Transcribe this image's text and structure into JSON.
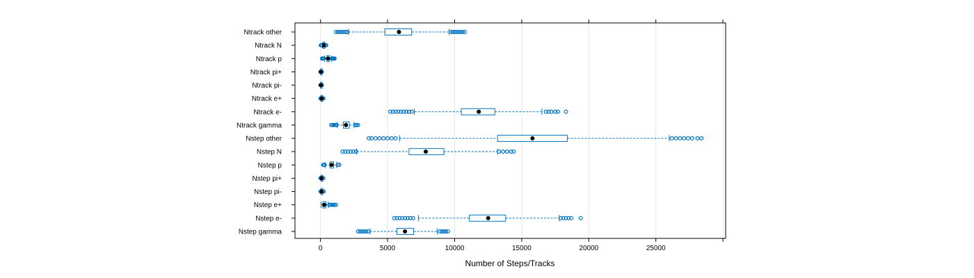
{
  "chart_data": {
    "type": "boxplot",
    "orientation": "horizontal",
    "xlabel": "Number of Steps/Tracks",
    "xlim": [
      -1900,
      30200
    ],
    "x_ticks": [
      0,
      5000,
      10000,
      15000,
      20000,
      25000
    ],
    "grid": true,
    "colors": {
      "box": "#0073C2",
      "outlier": "#0073C2",
      "grid": "#E6E6E6",
      "median": "#000000",
      "frame": "#000000"
    },
    "categories_top_to_bottom": [
      "Ntrack other",
      "Ntrack N",
      "Ntrack p",
      "Ntrack pi+",
      "Ntrack pi-",
      "Ntrack e+",
      "Ntrack e-",
      "Ntrack gamma",
      "Nstep other",
      "Nstep N",
      "Nstep p",
      "Nstep pi+",
      "Nstep pi-",
      "Nstep e+",
      "Nstep e-",
      "Nstep gamma"
    ],
    "boxes": [
      {
        "label": "Ntrack other",
        "whisker_low": 2100,
        "q1": 4800,
        "median": 5850,
        "q3": 6800,
        "whisker_high": 9600,
        "outliers": [
          1150,
          1300,
          1450,
          1600,
          1750,
          1900,
          2000,
          9700,
          9850,
          10000,
          10150,
          10300,
          10450,
          10600,
          10750
        ]
      },
      {
        "label": "Ntrack N",
        "whisker_low": 150,
        "q1": 200,
        "median": 250,
        "q3": 300,
        "whisker_high": 330,
        "outliers": [
          30,
          60,
          90,
          120,
          360,
          390,
          420
        ]
      },
      {
        "label": "Ntrack p",
        "whisker_low": 300,
        "q1": 480,
        "median": 560,
        "q3": 650,
        "whisker_high": 800,
        "outliers": [
          120,
          170,
          220,
          260,
          850,
          900,
          950,
          1000,
          1050
        ]
      },
      {
        "label": "Ntrack pi+",
        "whisker_low": 10,
        "q1": 20,
        "median": 30,
        "q3": 40,
        "whisker_high": 60,
        "outliers": [
          0,
          80,
          100
        ]
      },
      {
        "label": "Ntrack pi-",
        "whisker_low": 10,
        "q1": 20,
        "median": 30,
        "q3": 40,
        "whisker_high": 60,
        "outliers": [
          0,
          80,
          100
        ]
      },
      {
        "label": "Ntrack e+",
        "whisker_low": 30,
        "q1": 60,
        "median": 80,
        "q3": 100,
        "whisker_high": 130,
        "outliers": [
          0,
          160,
          190,
          220
        ]
      },
      {
        "label": "Ntrack e-",
        "whisker_low": 7000,
        "q1": 10500,
        "median": 11800,
        "q3": 13000,
        "whisker_high": 16500,
        "outliers": [
          5200,
          5400,
          5600,
          5800,
          6000,
          6200,
          6400,
          6600,
          6800,
          16800,
          17000,
          17200,
          17500,
          17700,
          18300
        ]
      },
      {
        "label": "Ntrack gamma",
        "whisker_low": 1250,
        "q1": 1700,
        "median": 1900,
        "q3": 2150,
        "whisker_high": 2500,
        "outliers": [
          800,
          900,
          1000,
          1100,
          1200,
          2600,
          2700,
          2800
        ]
      },
      {
        "label": "Nstep other",
        "whisker_low": 5900,
        "q1": 13200,
        "median": 15800,
        "q3": 18400,
        "whisker_high": 26000,
        "outliers": [
          3600,
          3800,
          4100,
          4400,
          4700,
          5000,
          5300,
          5600,
          26200,
          26500,
          26800,
          27100,
          27400,
          27700,
          28100,
          28400
        ]
      },
      {
        "label": "Nstep N",
        "whisker_low": 2700,
        "q1": 6600,
        "median": 7850,
        "q3": 9200,
        "whisker_high": 13200,
        "outliers": [
          1650,
          1850,
          2050,
          2250,
          2450,
          2650,
          13300,
          13600,
          13900,
          14200,
          14400
        ]
      },
      {
        "label": "Nstep p",
        "whisker_low": 350,
        "q1": 700,
        "median": 820,
        "q3": 980,
        "whisker_high": 1200,
        "outliers": [
          200,
          250,
          300,
          1300,
          1400
        ]
      },
      {
        "label": "Nstep pi+",
        "whisker_low": 30,
        "q1": 60,
        "median": 80,
        "q3": 110,
        "whisker_high": 150,
        "outliers": [
          0,
          180,
          210
        ]
      },
      {
        "label": "Nstep pi-",
        "whisker_low": 30,
        "q1": 60,
        "median": 80,
        "q3": 110,
        "whisker_high": 150,
        "outliers": [
          0,
          180,
          210,
          240
        ]
      },
      {
        "label": "Nstep e+",
        "whisker_low": 50,
        "q1": 180,
        "median": 280,
        "q3": 420,
        "whisker_high": 600,
        "outliers": [
          650,
          750,
          850,
          950,
          1050,
          1150
        ]
      },
      {
        "label": "Nstep e-",
        "whisker_low": 7300,
        "q1": 11100,
        "median": 12500,
        "q3": 13800,
        "whisker_high": 17800,
        "outliers": [
          5500,
          5700,
          5900,
          6100,
          6300,
          6500,
          6700,
          6900,
          17900,
          18100,
          18300,
          18500,
          18700,
          19400
        ]
      },
      {
        "label": "Nstep gamma",
        "whisker_low": 3700,
        "q1": 5700,
        "median": 6300,
        "q3": 6950,
        "whisker_high": 8700,
        "outliers": [
          2800,
          2950,
          3100,
          3250,
          3400,
          3550,
          8900,
          9050,
          9200,
          9350,
          9500
        ]
      }
    ]
  }
}
